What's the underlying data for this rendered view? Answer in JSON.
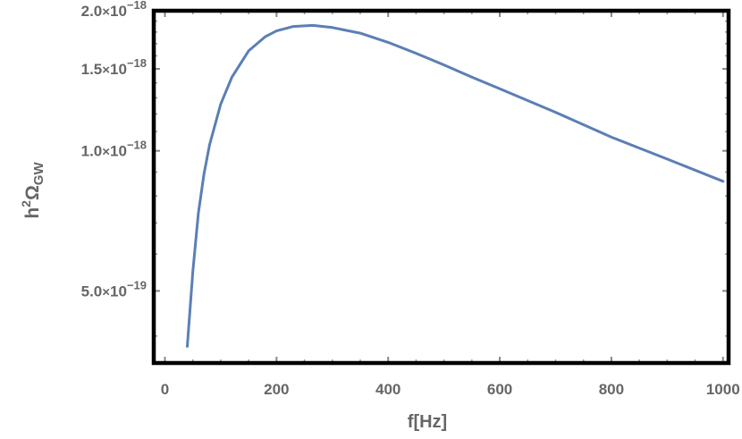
{
  "chart_data": {
    "type": "line",
    "xlabel": "f[Hz]",
    "ylabel": "h²Ω_GW",
    "ylabel_parts": {
      "base": "h",
      "sup": "2",
      "omega": "Ω",
      "sub": "GW"
    },
    "x_scale": "linear",
    "y_scale": "log",
    "xlim": [
      -20,
      1010
    ],
    "ylim": [
      3.5e-19,
      2e-18
    ],
    "x_ticks": [
      {
        "value": 0,
        "label": "0"
      },
      {
        "value": 200,
        "label": "200"
      },
      {
        "value": 400,
        "label": "400"
      },
      {
        "value": 600,
        "label": "600"
      },
      {
        "value": 800,
        "label": "800"
      },
      {
        "value": 1000,
        "label": "1000"
      }
    ],
    "y_ticks": [
      {
        "value": 5e-19,
        "mantissa": "5.0",
        "times": "×",
        "base": "10",
        "exp": "−19"
      },
      {
        "value": 1e-18,
        "mantissa": "1.0",
        "times": "×",
        "base": "10",
        "exp": "−18"
      },
      {
        "value": 1.5e-18,
        "mantissa": "1.5",
        "times": "×",
        "base": "10",
        "exp": "−18"
      },
      {
        "value": 2e-18,
        "mantissa": "2.0",
        "times": "×",
        "base": "10",
        "exp": "−18"
      }
    ],
    "grid": false,
    "frame": true,
    "line_color": "#5b7fb5",
    "series": [
      {
        "x": [
          40,
          50,
          60,
          70,
          80,
          100,
          120,
          150,
          180,
          200,
          230,
          265,
          300,
          350,
          400,
          450,
          500,
          550,
          600,
          700,
          800,
          900,
          1000
        ],
        "y": [
          3.8e-19,
          5.5e-19,
          7.35e-19,
          8.92e-19,
          1.03e-18,
          1.26e-18,
          1.44e-18,
          1.64e-18,
          1.76e-18,
          1.81e-18,
          1.85e-18,
          1.86e-18,
          1.84e-18,
          1.79e-18,
          1.71e-18,
          1.62e-18,
          1.53e-18,
          1.44e-18,
          1.36e-18,
          1.21e-18,
          1.07e-18,
          9.6e-19,
          8.6e-19
        ]
      }
    ]
  }
}
